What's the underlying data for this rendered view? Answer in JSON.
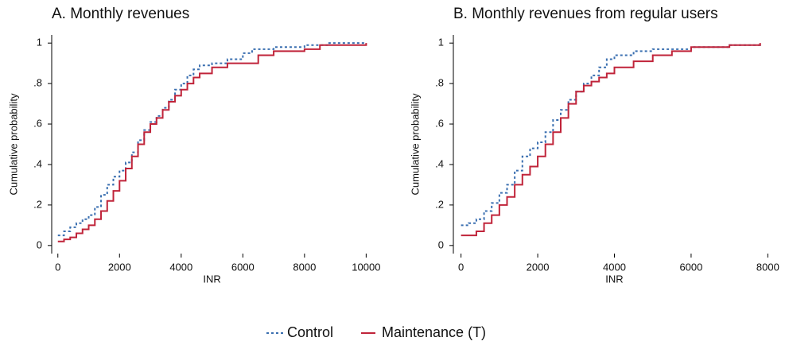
{
  "chart_data": [
    {
      "type": "step",
      "title": "A. Monthly revenues",
      "x_label": "INR",
      "y_label": "Cumulative probability",
      "xlim": [
        -200,
        10300
      ],
      "ylim": [
        -0.04,
        1.04
      ],
      "xticks": [
        0,
        2000,
        4000,
        6000,
        8000,
        10000
      ],
      "yticks": [
        0,
        {
          "value": 0.2,
          "label": ".2"
        },
        {
          "value": 0.4,
          "label": ".4"
        },
        {
          "value": 0.6,
          "label": ".6"
        },
        {
          "value": 0.8,
          "label": ".8"
        },
        1
      ],
      "series": [
        {
          "name": "Control",
          "color": "#3a6fb0",
          "dashed": true,
          "x": [
            0,
            200,
            400,
            600,
            800,
            1000,
            1200,
            1400,
            1600,
            1800,
            2000,
            2200,
            2400,
            2600,
            2800,
            3000,
            3200,
            3400,
            3600,
            3800,
            4000,
            4200,
            4400,
            4600,
            5000,
            5500,
            6000,
            6300,
            7000,
            8000,
            8800,
            10000
          ],
          "values": [
            0.05,
            0.07,
            0.09,
            0.11,
            0.13,
            0.15,
            0.19,
            0.25,
            0.3,
            0.34,
            0.37,
            0.41,
            0.46,
            0.52,
            0.57,
            0.61,
            0.64,
            0.68,
            0.72,
            0.77,
            0.8,
            0.84,
            0.87,
            0.89,
            0.9,
            0.92,
            0.95,
            0.97,
            0.98,
            0.99,
            1,
            1
          ]
        },
        {
          "name": "Maintenance (T)",
          "color": "#c0243a",
          "dashed": false,
          "x": [
            0,
            200,
            400,
            600,
            800,
            1000,
            1200,
            1400,
            1600,
            1800,
            2000,
            2200,
            2400,
            2600,
            2800,
            3000,
            3200,
            3400,
            3600,
            3800,
            4000,
            4200,
            4400,
            4600,
            5000,
            5500,
            6000,
            6500,
            7000,
            8000,
            8500,
            10000
          ],
          "values": [
            0.02,
            0.03,
            0.04,
            0.06,
            0.08,
            0.1,
            0.13,
            0.17,
            0.22,
            0.27,
            0.32,
            0.38,
            0.44,
            0.5,
            0.56,
            0.6,
            0.63,
            0.67,
            0.71,
            0.74,
            0.77,
            0.8,
            0.83,
            0.85,
            0.88,
            0.9,
            0.9,
            0.94,
            0.96,
            0.97,
            0.99,
            1
          ]
        }
      ]
    },
    {
      "type": "step",
      "title": "B. Monthly revenues from regular users",
      "x_label": "INR",
      "y_label": "Cumulative probability",
      "xlim": [
        -200,
        8200
      ],
      "ylim": [
        -0.04,
        1.04
      ],
      "xticks": [
        0,
        2000,
        4000,
        6000,
        8000
      ],
      "yticks": [
        0,
        {
          "value": 0.2,
          "label": ".2"
        },
        {
          "value": 0.4,
          "label": ".4"
        },
        {
          "value": 0.6,
          "label": ".6"
        },
        {
          "value": 0.8,
          "label": ".8"
        },
        1
      ],
      "series": [
        {
          "color": "#3a6fb0",
          "dashed": true,
          "x": [
            0,
            200,
            400,
            600,
            800,
            1000,
            1200,
            1400,
            1600,
            1800,
            2000,
            2200,
            2400,
            2600,
            2800,
            3000,
            3200,
            3400,
            3600,
            3800,
            4000,
            4500,
            5000,
            5500,
            6000,
            7000,
            7800
          ],
          "values": [
            0.1,
            0.11,
            0.13,
            0.17,
            0.21,
            0.26,
            0.3,
            0.37,
            0.44,
            0.48,
            0.51,
            0.56,
            0.62,
            0.67,
            0.72,
            0.76,
            0.8,
            0.84,
            0.88,
            0.92,
            0.94,
            0.96,
            0.97,
            0.97,
            0.98,
            0.99,
            1
          ]
        },
        {
          "color": "#c0243a",
          "dashed": false,
          "x": [
            0,
            200,
            400,
            600,
            800,
            1000,
            1200,
            1400,
            1600,
            1800,
            2000,
            2200,
            2400,
            2600,
            2800,
            3000,
            3200,
            3400,
            3600,
            3800,
            4000,
            4500,
            5000,
            5500,
            6000,
            7000,
            7800
          ],
          "values": [
            0.05,
            0.05,
            0.07,
            0.11,
            0.15,
            0.2,
            0.24,
            0.3,
            0.35,
            0.39,
            0.44,
            0.5,
            0.56,
            0.63,
            0.7,
            0.76,
            0.79,
            0.81,
            0.83,
            0.85,
            0.88,
            0.91,
            0.94,
            0.96,
            0.98,
            0.99,
            1
          ]
        }
      ]
    }
  ]
}
